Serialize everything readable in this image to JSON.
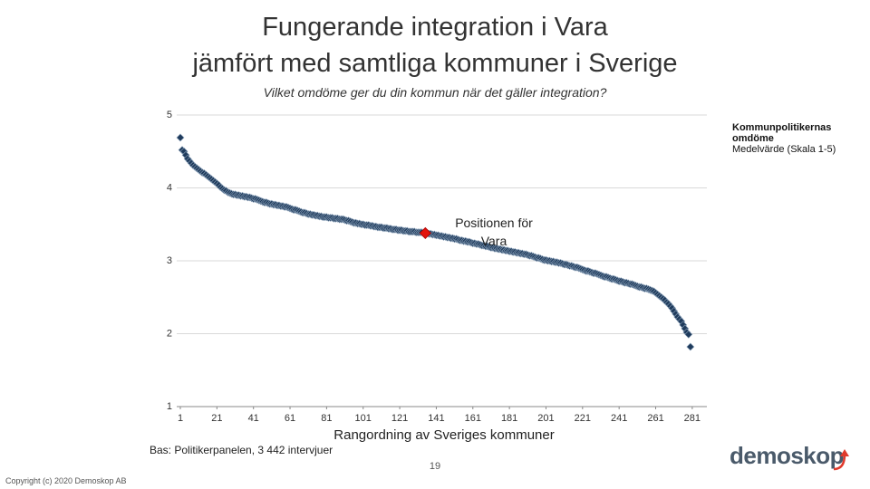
{
  "header": {
    "title_lines": [
      "Fungerande integration i Vara",
      "jämfört med samtliga kommuner i Sverige"
    ],
    "question": "Vilket omdöme ger du din kommun när det gäller integration?"
  },
  "chart_data": {
    "type": "scatter",
    "xlabel": "Rangordning av Sveriges kommuner",
    "xlim": [
      1,
      289
    ],
    "xticks": [
      1,
      21,
      41,
      61,
      81,
      101,
      121,
      141,
      161,
      181,
      201,
      221,
      241,
      261,
      281
    ],
    "ylim": [
      1,
      5
    ],
    "yticks": [
      1,
      2,
      3,
      4,
      5
    ],
    "grid": true,
    "legend_subtitle": "Medelvärde (Skala 1-5)",
    "series": [
      {
        "name": "Kommunpolitikernas omdöme",
        "color": "#1f3b5c",
        "x": [
          1,
          2,
          3,
          4,
          5,
          6,
          7,
          8,
          9,
          10,
          11,
          12,
          13,
          14,
          15,
          16,
          17,
          18,
          19,
          20,
          21,
          22,
          23,
          24,
          25,
          26,
          27,
          28,
          29,
          30,
          31,
          32,
          33,
          34,
          35,
          36,
          37,
          38,
          39,
          40,
          41,
          42,
          43,
          44,
          45,
          46,
          47,
          48,
          49,
          50,
          51,
          52,
          53,
          54,
          55,
          56,
          57,
          58,
          59,
          60,
          61,
          62,
          63,
          64,
          65,
          66,
          67,
          68,
          69,
          70,
          71,
          72,
          73,
          74,
          75,
          76,
          77,
          78,
          79,
          80,
          81,
          82,
          83,
          84,
          85,
          86,
          87,
          88,
          89,
          90,
          91,
          92,
          93,
          94,
          95,
          96,
          97,
          98,
          99,
          100,
          101,
          102,
          103,
          104,
          105,
          106,
          107,
          108,
          109,
          110,
          111,
          112,
          113,
          114,
          115,
          116,
          117,
          118,
          119,
          120,
          121,
          122,
          123,
          124,
          125,
          126,
          127,
          128,
          129,
          130,
          131,
          132,
          133,
          134,
          135,
          136,
          137,
          138,
          139,
          140,
          141,
          142,
          143,
          144,
          145,
          146,
          147,
          148,
          149,
          150,
          151,
          152,
          153,
          154,
          155,
          156,
          157,
          158,
          159,
          160,
          161,
          162,
          163,
          164,
          165,
          166,
          167,
          168,
          169,
          170,
          171,
          172,
          173,
          174,
          175,
          176,
          177,
          178,
          179,
          180,
          181,
          182,
          183,
          184,
          185,
          186,
          187,
          188,
          189,
          190,
          191,
          192,
          193,
          194,
          195,
          196,
          197,
          198,
          199,
          200,
          201,
          202,
          203,
          204,
          205,
          206,
          207,
          208,
          209,
          210,
          211,
          212,
          213,
          214,
          215,
          216,
          217,
          218,
          219,
          220,
          221,
          222,
          223,
          224,
          225,
          226,
          227,
          228,
          229,
          230,
          231,
          232,
          233,
          234,
          235,
          236,
          237,
          238,
          239,
          240,
          241,
          242,
          243,
          244,
          245,
          246,
          247,
          248,
          249,
          250,
          251,
          252,
          253,
          254,
          255,
          256,
          257,
          258,
          259,
          260,
          261,
          262,
          263,
          264,
          265,
          266,
          267,
          268,
          269,
          270,
          271,
          272,
          273,
          274,
          275,
          276,
          277,
          278,
          279,
          280
        ],
        "values": [
          4.69,
          4.52,
          4.5,
          4.45,
          4.4,
          4.37,
          4.34,
          4.31,
          4.29,
          4.27,
          4.25,
          4.23,
          4.21,
          4.2,
          4.18,
          4.16,
          4.14,
          4.12,
          4.1,
          4.08,
          4.06,
          4.04,
          4.01,
          3.99,
          3.97,
          3.96,
          3.94,
          3.93,
          3.92,
          3.91,
          3.91,
          3.9,
          3.9,
          3.89,
          3.89,
          3.88,
          3.88,
          3.87,
          3.87,
          3.86,
          3.85,
          3.85,
          3.84,
          3.83,
          3.82,
          3.81,
          3.8,
          3.8,
          3.79,
          3.78,
          3.78,
          3.77,
          3.77,
          3.76,
          3.76,
          3.75,
          3.75,
          3.74,
          3.74,
          3.73,
          3.72,
          3.71,
          3.7,
          3.7,
          3.69,
          3.68,
          3.67,
          3.66,
          3.66,
          3.65,
          3.64,
          3.64,
          3.63,
          3.63,
          3.62,
          3.62,
          3.61,
          3.61,
          3.6,
          3.6,
          3.6,
          3.59,
          3.59,
          3.59,
          3.58,
          3.58,
          3.58,
          3.57,
          3.57,
          3.57,
          3.56,
          3.55,
          3.55,
          3.54,
          3.53,
          3.52,
          3.52,
          3.51,
          3.51,
          3.5,
          3.5,
          3.49,
          3.49,
          3.49,
          3.48,
          3.48,
          3.47,
          3.47,
          3.46,
          3.46,
          3.46,
          3.45,
          3.45,
          3.45,
          3.44,
          3.44,
          3.43,
          3.43,
          3.43,
          3.42,
          3.42,
          3.42,
          3.41,
          3.41,
          3.41,
          3.4,
          3.4,
          3.4,
          3.4,
          3.39,
          3.39,
          3.39,
          3.39,
          3.38,
          3.38,
          3.38,
          3.37,
          3.37,
          3.36,
          3.36,
          3.35,
          3.35,
          3.34,
          3.34,
          3.33,
          3.33,
          3.32,
          3.32,
          3.31,
          3.31,
          3.3,
          3.3,
          3.29,
          3.28,
          3.28,
          3.27,
          3.27,
          3.26,
          3.26,
          3.25,
          3.24,
          3.24,
          3.23,
          3.23,
          3.22,
          3.21,
          3.21,
          3.2,
          3.2,
          3.19,
          3.18,
          3.18,
          3.17,
          3.17,
          3.16,
          3.16,
          3.15,
          3.15,
          3.14,
          3.14,
          3.13,
          3.13,
          3.12,
          3.12,
          3.11,
          3.11,
          3.1,
          3.1,
          3.09,
          3.09,
          3.08,
          3.07,
          3.07,
          3.06,
          3.05,
          3.04,
          3.04,
          3.03,
          3.02,
          3.01,
          3.01,
          3.0,
          3.0,
          2.99,
          2.99,
          2.98,
          2.98,
          2.97,
          2.97,
          2.96,
          2.95,
          2.95,
          2.94,
          2.93,
          2.93,
          2.92,
          2.91,
          2.91,
          2.9,
          2.89,
          2.88,
          2.87,
          2.86,
          2.86,
          2.85,
          2.84,
          2.83,
          2.83,
          2.82,
          2.81,
          2.8,
          2.79,
          2.78,
          2.78,
          2.77,
          2.76,
          2.75,
          2.75,
          2.74,
          2.73,
          2.72,
          2.72,
          2.71,
          2.7,
          2.7,
          2.69,
          2.68,
          2.68,
          2.67,
          2.66,
          2.65,
          2.64,
          2.64,
          2.63,
          2.62,
          2.62,
          2.61,
          2.6,
          2.59,
          2.58,
          2.56,
          2.54,
          2.52,
          2.5,
          2.48,
          2.46,
          2.43,
          2.41,
          2.38,
          2.35,
          2.31,
          2.27,
          2.23,
          2.2,
          2.17,
          2.12,
          2.07,
          2.02,
          1.99,
          1.82
        ]
      }
    ],
    "highlight": {
      "label": "Positionen för Vara",
      "x": 135,
      "value": 3.38,
      "color": "#e3120b"
    }
  },
  "footer": {
    "base": "Bas: Politikerpanelen, 3 442 intervjuer",
    "page": "19",
    "copyright": "Copyright (c) 2020 Demoskop AB",
    "logo": "demoskop"
  }
}
